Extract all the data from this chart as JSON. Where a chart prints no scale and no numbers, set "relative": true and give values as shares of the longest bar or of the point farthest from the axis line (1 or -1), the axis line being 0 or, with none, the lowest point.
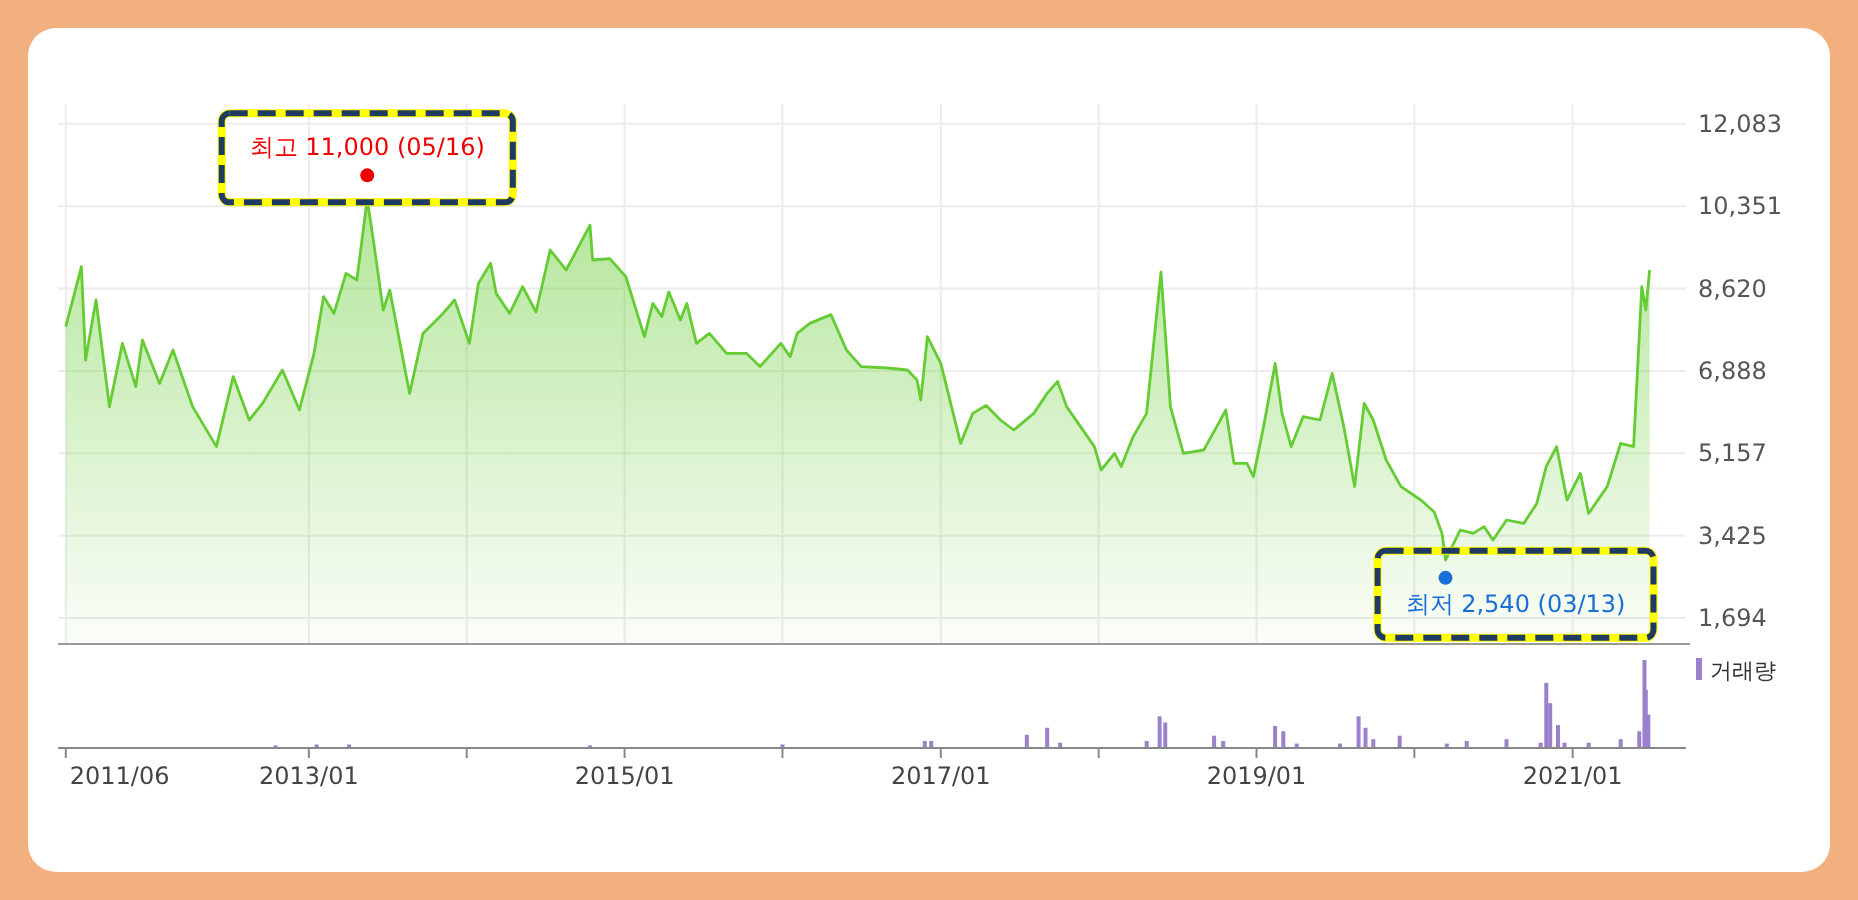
{
  "chart_data": [
    {
      "type": "area",
      "color": "#66cc33",
      "x": [
        "2011-06-19",
        "2011-07-25",
        "2011-08-04",
        "2011-08-28",
        "2011-09-28",
        "2011-10-28",
        "2011-11-28",
        "2011-12-13",
        "2012-01-22",
        "2012-02-22",
        "2012-04-07",
        "2012-06-01",
        "2012-07-10",
        "2012-08-16",
        "2012-09-16",
        "2012-11-01",
        "2012-12-10",
        "2013-01-13",
        "2013-02-04",
        "2013-02-28",
        "2013-03-28",
        "2013-04-22",
        "2013-05-16",
        "2013-05-28",
        "2013-06-22",
        "2013-07-07",
        "2013-08-22",
        "2013-09-22",
        "2013-11-07",
        "2013-12-04",
        "2014-01-07",
        "2014-01-28",
        "2014-02-25",
        "2014-03-10",
        "2014-04-10",
        "2014-05-10",
        "2014-06-10",
        "2014-07-13",
        "2014-08-19",
        "2014-10-13",
        "2014-10-19",
        "2014-11-28",
        "2015-01-04",
        "2015-02-16",
        "2015-03-07",
        "2015-03-28",
        "2015-04-13",
        "2015-05-10",
        "2015-05-25",
        "2015-06-16",
        "2015-07-16",
        "2015-08-25",
        "2015-10-10",
        "2015-11-10",
        "2015-12-28",
        "2016-01-19",
        "2016-02-04",
        "2016-03-04",
        "2016-04-22",
        "2016-05-28",
        "2016-07-01",
        "2016-09-01",
        "2016-10-16",
        "2016-11-07",
        "2016-11-16",
        "2016-12-01",
        "2017-01-01",
        "2017-02-16",
        "2017-03-16",
        "2017-04-16",
        "2017-05-19",
        "2017-06-19",
        "2017-08-04",
        "2017-09-04",
        "2017-09-28",
        "2017-10-19",
        "2017-12-22",
        "2018-01-07",
        "2018-02-07",
        "2018-02-22",
        "2018-03-22",
        "2018-04-22",
        "2018-05-25",
        "2018-06-16",
        "2018-07-16",
        "2018-09-01",
        "2018-10-01",
        "2018-10-22",
        "2018-11-10",
        "2018-12-10",
        "2018-12-25",
        "2019-01-19",
        "2019-02-13",
        "2019-03-01",
        "2019-03-22",
        "2019-04-19",
        "2019-05-28",
        "2019-06-25",
        "2019-07-22",
        "2019-08-16",
        "2019-09-07",
        "2019-09-28",
        "2019-10-28",
        "2019-12-01",
        "2020-01-16",
        "2020-02-16",
        "2020-03-05",
        "2020-03-13",
        "2020-04-16",
        "2020-05-16",
        "2020-06-10",
        "2020-07-01",
        "2020-08-01",
        "2020-09-10",
        "2020-10-10",
        "2020-11-01",
        "2020-11-25",
        "2020-12-19",
        "2021-01-19",
        "2021-02-07",
        "2021-03-22",
        "2021-04-22",
        "2021-05-22",
        "2021-06-10",
        "2021-06-19",
        "2021-06-28"
      ],
      "values": [
        7822,
        9084,
        7120,
        8382,
        6140,
        7469,
        6560,
        7540,
        6628,
        7330,
        6140,
        5299,
        6771,
        5858,
        6207,
        6910,
        6068,
        7259,
        8453,
        8100,
        8941,
        8802,
        10485,
        9782,
        8171,
        8592,
        6418,
        7679,
        8100,
        8382,
        7469,
        8731,
        9152,
        8521,
        8100,
        8664,
        8130,
        9433,
        9012,
        9951,
        9223,
        9252,
        8874,
        7612,
        8310,
        8033,
        8550,
        7961,
        8310,
        7469,
        7679,
        7259,
        7259,
        6981,
        7469,
        7191,
        7679,
        7890,
        8075,
        7330,
        6981,
        6952,
        6910,
        6699,
        6279,
        7612,
        7049,
        5366,
        5997,
        6165,
        5858,
        5648,
        5997,
        6418,
        6670,
        6140,
        5299,
        4806,
        5156,
        4878,
        5509,
        5997,
        8971,
        6140,
        5156,
        5227,
        5719,
        6068,
        4946,
        4946,
        4668,
        5786,
        7049,
        5997,
        5299,
        5930,
        5858,
        6838,
        5719,
        4457,
        6207,
        5858,
        5017,
        4457,
        4176,
        3924,
        3474,
        2914,
        3545,
        3474,
        3616,
        3335,
        3756,
        3685,
        4106,
        4878,
        5299,
        4176,
        4735,
        3895,
        4457,
        5366,
        5299,
        8664,
        8171,
        9012
      ],
      "xlim": [
        "2011-06-01",
        "2021-09-20"
      ],
      "xticks": [
        {
          "value": "2011-06-19",
          "label": null
        },
        {
          "value": "2013-01-01",
          "label": null
        },
        {
          "value": "2014-01-01",
          "label": null
        },
        {
          "value": "2015-01-01",
          "label": null
        },
        {
          "value": "2016-01-01",
          "label": null
        },
        {
          "value": "2017-01-01",
          "label": null
        },
        {
          "value": "2018-01-01",
          "label": null
        },
        {
          "value": "2019-01-01",
          "label": null
        },
        {
          "value": "2020-01-01",
          "label": null
        },
        {
          "value": "2021-01-01",
          "label": null
        }
      ],
      "ylim": [
        1150,
        12500
      ],
      "yticks": [
        {
          "value": 1694,
          "label": "1,694"
        },
        {
          "value": 3425,
          "label": "3,425"
        },
        {
          "value": 5157,
          "label": "5,157"
        },
        {
          "value": 6888,
          "label": "6,888"
        },
        {
          "value": 8620,
          "label": "8,620"
        },
        {
          "value": 10351,
          "label": "10,351"
        },
        {
          "value": 12083,
          "label": "12,083"
        }
      ],
      "grid": true,
      "tick_labels": "y",
      "annotations": [
        {
          "text": "최고 11,000 (05/16)",
          "x": "2013-05-16",
          "y": 11000
        },
        {
          "text": "최저 2,540 (03/13)",
          "x": "2020-03-13",
          "y": 2540
        }
      ]
    },
    {
      "type": "bar",
      "relative": true,
      "legend": "top right",
      "tick_labels": "x",
      "xlim": [
        "2011-06-01",
        "2021-09-20"
      ],
      "xticks": [
        {
          "value": "2011-06-19",
          "label": "2011/06"
        },
        {
          "value": "2013-01-01",
          "label": "2013/01"
        },
        {
          "value": "2014-01-01",
          "label": null
        },
        {
          "value": "2015-01-01",
          "label": "2015/01"
        },
        {
          "value": "2016-01-01",
          "label": null
        },
        {
          "value": "2017-01-01",
          "label": "2017/01"
        },
        {
          "value": "2018-01-01",
          "label": null
        },
        {
          "value": "2019-01-01",
          "label": "2019/01"
        },
        {
          "value": "2020-01-01",
          "label": null
        },
        {
          "value": "2021-01-01",
          "label": "2021/01"
        }
      ],
      "x": [
        "2012-10-16",
        "2013-01-19",
        "2013-04-04",
        "2014-10-13",
        "2016-01-01",
        "2016-11-25",
        "2016-12-10",
        "2017-07-19",
        "2017-09-04",
        "2017-10-04",
        "2018-04-22",
        "2018-05-22",
        "2018-06-04",
        "2018-09-25",
        "2018-10-16",
        "2019-02-13",
        "2019-03-04",
        "2019-04-04",
        "2019-07-13",
        "2019-08-25",
        "2019-09-10",
        "2019-09-28",
        "2019-11-28",
        "2020-03-16",
        "2020-05-01",
        "2020-08-01",
        "2020-10-19",
        "2020-11-01",
        "2020-11-10",
        "2020-11-28",
        "2020-12-13",
        "2021-02-07",
        "2021-04-22",
        "2021-06-04",
        "2021-06-16",
        "2021-06-19",
        "2021-06-25"
      ],
      "series": [
        {
          "name": "거래량",
          "color": "#9b80cc",
          "values": [
            0.03,
            0.04,
            0.04,
            0.03,
            0.04,
            0.08,
            0.08,
            0.15,
            0.23,
            0.06,
            0.08,
            0.36,
            0.29,
            0.14,
            0.08,
            0.25,
            0.19,
            0.05,
            0.05,
            0.36,
            0.23,
            0.1,
            0.14,
            0.05,
            0.08,
            0.1,
            0.06,
            0.74,
            0.51,
            0.26,
            0.06,
            0.06,
            0.1,
            0.19,
            1,
            0.66,
            0.38
          ]
        }
      ]
    }
  ]
}
